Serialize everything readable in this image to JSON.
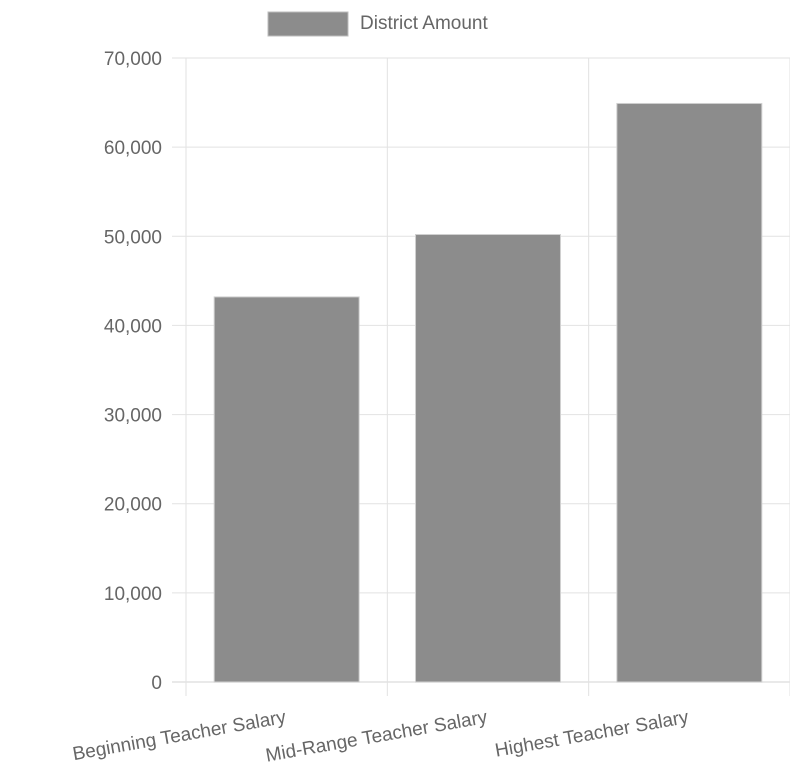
{
  "chart_data": {
    "type": "bar",
    "categories": [
      "Beginning Teacher Salary",
      "Mid-Range Teacher Salary",
      "Highest Teacher Salary"
    ],
    "series": [
      {
        "name": "District Amount",
        "values": [
          43200,
          50200,
          64900
        ]
      }
    ],
    "yticks": [
      "0",
      "10,000",
      "20,000",
      "30,000",
      "40,000",
      "50,000",
      "60,000",
      "70,000"
    ],
    "ylim": [
      0,
      70000
    ],
    "grid": true,
    "legend_position": "top",
    "colors": {
      "bar": "#8c8c8c",
      "grid": "#e2e2e2",
      "text": "#666666"
    }
  }
}
